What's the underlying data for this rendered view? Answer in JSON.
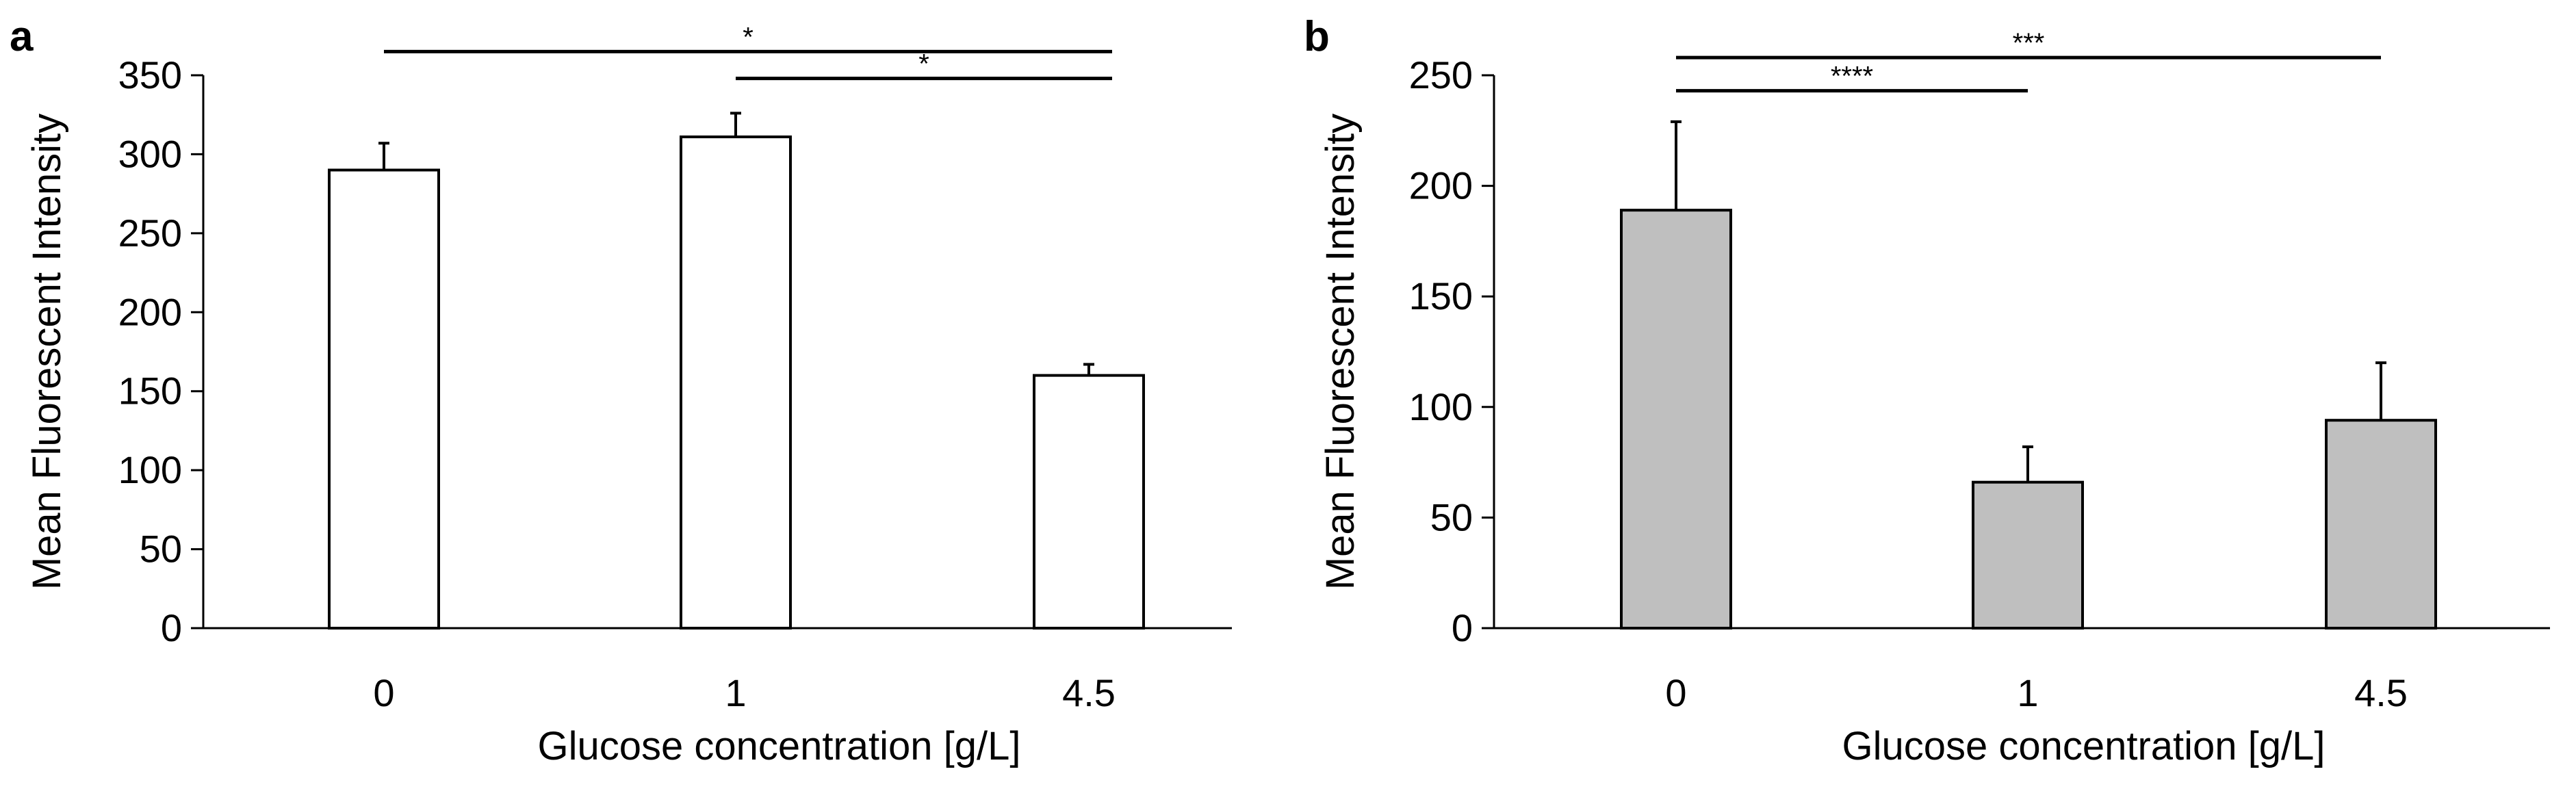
{
  "chart_data": [
    {
      "panel": "a",
      "type": "bar",
      "categories": [
        "0",
        "1",
        "4.5"
      ],
      "values": [
        290,
        311,
        160
      ],
      "errors": [
        17,
        15,
        7
      ],
      "bar_color": "#ffffff",
      "xlabel": "Glucose concentration [g/L]",
      "ylabel": "Mean Fluorescent Intensity",
      "ylim": [
        0,
        350
      ],
      "yticks": [
        0,
        50,
        100,
        150,
        200,
        250,
        300,
        350
      ],
      "grid": false,
      "significance": [
        {
          "from": 0,
          "to": 2,
          "label": "*",
          "y": 365
        },
        {
          "from": 1,
          "to": 2,
          "label": "*",
          "y": 348
        }
      ]
    },
    {
      "panel": "b",
      "type": "bar",
      "categories": [
        "0",
        "1",
        "4.5"
      ],
      "values": [
        189,
        66,
        94
      ],
      "errors": [
        40,
        16,
        26
      ],
      "bar_color": "#bfbfbf",
      "xlabel": "Glucose concentration [g/L]",
      "ylabel": "Mean Fluorescent Intensity",
      "ylim": [
        0,
        250
      ],
      "yticks": [
        0,
        50,
        100,
        150,
        200,
        250
      ],
      "grid": false,
      "significance": [
        {
          "from": 0,
          "to": 2,
          "label": "***",
          "y": 258
        },
        {
          "from": 0,
          "to": 1,
          "label": "****",
          "y": 243
        }
      ]
    }
  ]
}
